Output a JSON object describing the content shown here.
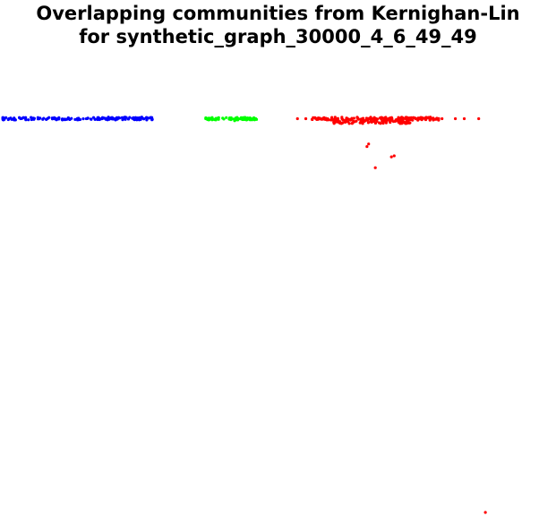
{
  "chart_data": {
    "type": "scatter",
    "title_line1": "Overlapping communities from Kernighan-Lin",
    "title_line2": "for synthetic_graph_30000_4_6_49_49",
    "xlabel": "",
    "ylabel": "",
    "axes_visible": false,
    "grid": false,
    "legend": "none",
    "xlim": [
      0,
      100
    ],
    "ylim": [
      0,
      100
    ],
    "series": [
      {
        "color": "#0000ff",
        "clusters": [
          {
            "x_range": [
              0.5,
              27.5
            ],
            "y": 77.0,
            "jitter": 0.25,
            "count": 160
          }
        ],
        "points": [
          {
            "x": 0.5,
            "y": 77.0
          },
          {
            "x": 1.6,
            "y": 77.0
          },
          {
            "x": 19.5,
            "y": 77.3
          },
          {
            "x": 21.0,
            "y": 77.2
          },
          {
            "x": 22.5,
            "y": 77.3
          },
          {
            "x": 24.0,
            "y": 77.2
          },
          {
            "x": 25.5,
            "y": 77.3
          },
          {
            "x": 26.8,
            "y": 77.1
          },
          {
            "x": 27.3,
            "y": 77.0
          }
        ]
      },
      {
        "color": "#00ff00",
        "clusters": [
          {
            "x_range": [
              37.0,
              46.2
            ],
            "y": 77.0,
            "jitter": 0.25,
            "count": 70
          }
        ],
        "points": [
          {
            "x": 37.0,
            "y": 77.0
          },
          {
            "x": 42.2,
            "y": 76.6
          },
          {
            "x": 46.0,
            "y": 77.0
          }
        ]
      },
      {
        "color": "#ff0000",
        "clusters": [
          {
            "x_range": [
              56.0,
              79.0
            ],
            "y": 77.0,
            "jitter": 0.3,
            "count": 170
          },
          {
            "x_range": [
              60.0,
              74.0
            ],
            "y": 76.4,
            "jitter": 0.35,
            "count": 80
          }
        ],
        "points": [
          {
            "x": 53.5,
            "y": 77.0
          },
          {
            "x": 55.0,
            "y": 77.0
          },
          {
            "x": 79.5,
            "y": 77.0
          },
          {
            "x": 81.9,
            "y": 77.0
          },
          {
            "x": 83.5,
            "y": 77.0
          },
          {
            "x": 86.1,
            "y": 77.0
          },
          {
            "x": 66.3,
            "y": 72.1
          },
          {
            "x": 66.0,
            "y": 71.6
          },
          {
            "x": 70.4,
            "y": 69.6
          },
          {
            "x": 70.9,
            "y": 69.8
          },
          {
            "x": 67.5,
            "y": 67.5
          },
          {
            "x": 87.3,
            "y": 0.7
          }
        ]
      }
    ]
  }
}
